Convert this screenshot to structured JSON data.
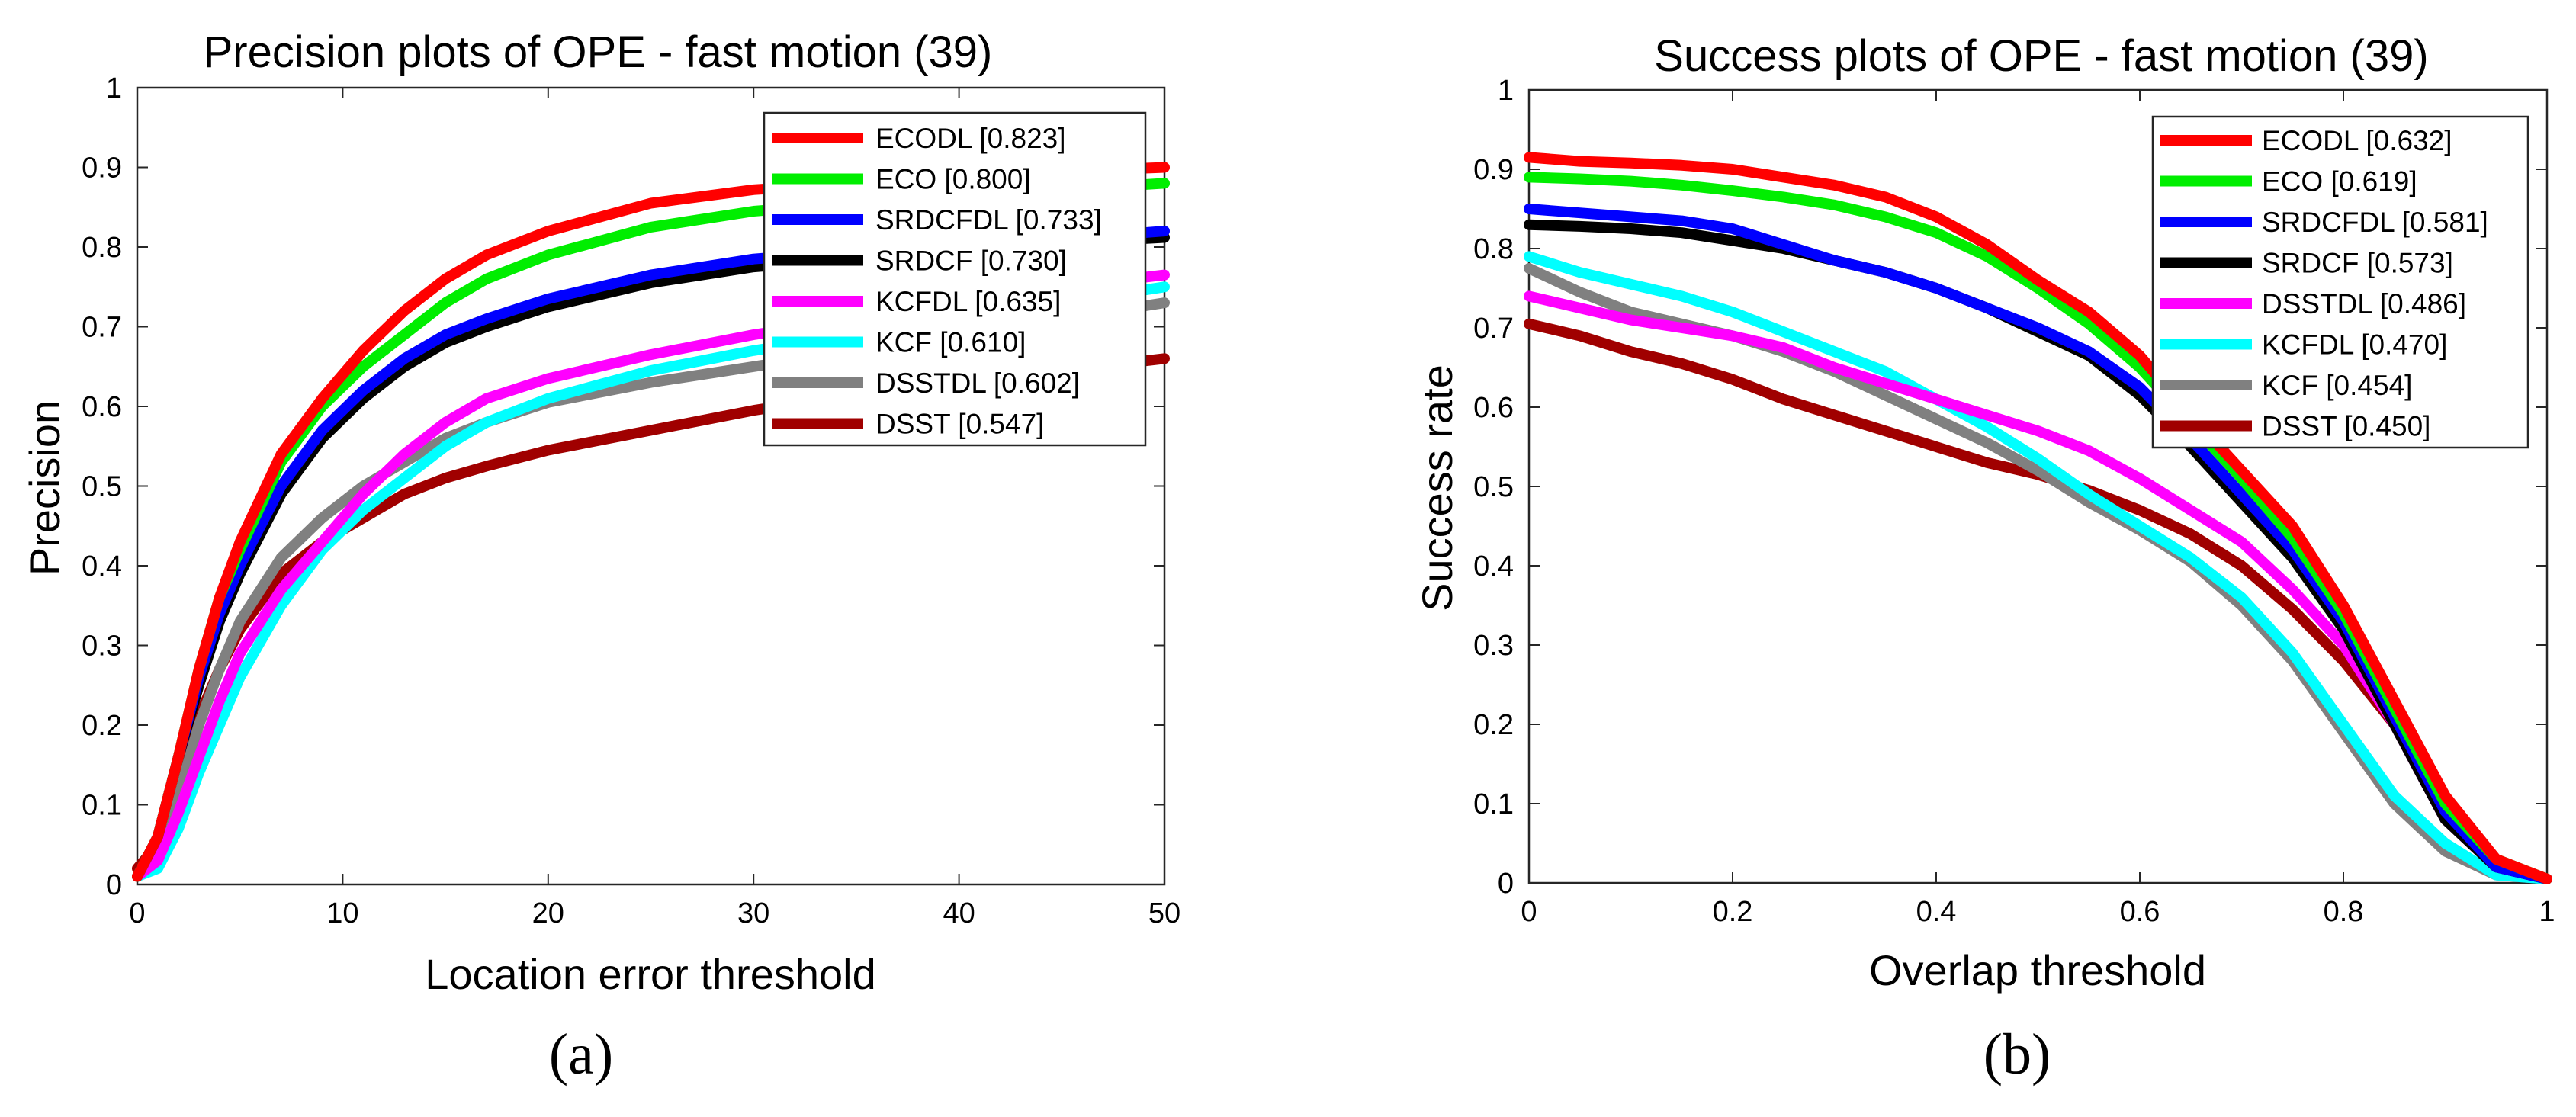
{
  "chart_data": [
    {
      "type": "line",
      "title": "Precision plots of OPE - fast motion (39)",
      "xlabel": "Location error threshold",
      "ylabel": "Precision",
      "xlim": [
        0,
        50
      ],
      "ylim": [
        0,
        1
      ],
      "xticks": [
        0,
        10,
        20,
        30,
        40,
        50
      ],
      "yticks": [
        0,
        0.1,
        0.2,
        0.3,
        0.4,
        0.5,
        0.6,
        0.7,
        0.8,
        0.9,
        1
      ],
      "xtick_labels": [
        "0",
        "10",
        "20",
        "30",
        "40",
        "50"
      ],
      "ytick_labels": [
        "0",
        "0.1",
        "0.2",
        "0.3",
        "0.4",
        "0.5",
        "0.6",
        "0.7",
        "0.8",
        "0.9",
        "1"
      ],
      "legend_position": "top-right",
      "caption": "(a)",
      "x": [
        0,
        1,
        2,
        3,
        4,
        5,
        7,
        9,
        11,
        13,
        15,
        17,
        20,
        25,
        30,
        35,
        40,
        45,
        50
      ],
      "series": [
        {
          "name": "ECODL",
          "label": "ECODL [0.823]",
          "color": "#ff0000",
          "values": [
            0.01,
            0.06,
            0.16,
            0.27,
            0.36,
            0.43,
            0.54,
            0.61,
            0.67,
            0.72,
            0.76,
            0.79,
            0.82,
            0.855,
            0.872,
            0.88,
            0.89,
            0.895,
            0.9
          ]
        },
        {
          "name": "ECO",
          "label": "ECO [0.800]",
          "color": "#00ee00",
          "values": [
            0.01,
            0.06,
            0.16,
            0.27,
            0.36,
            0.42,
            0.53,
            0.6,
            0.65,
            0.69,
            0.73,
            0.76,
            0.79,
            0.825,
            0.845,
            0.855,
            0.865,
            0.872,
            0.88
          ]
        },
        {
          "name": "SRDCFDL",
          "label": "SRDCFDL [0.733]",
          "color": "#0000ff",
          "values": [
            0.01,
            0.06,
            0.16,
            0.26,
            0.34,
            0.4,
            0.5,
            0.57,
            0.62,
            0.66,
            0.69,
            0.71,
            0.735,
            0.765,
            0.785,
            0.795,
            0.805,
            0.81,
            0.82
          ]
        },
        {
          "name": "SRDCF",
          "label": "SRDCF [0.730]",
          "color": "#000000",
          "values": [
            0.01,
            0.06,
            0.16,
            0.25,
            0.33,
            0.39,
            0.49,
            0.56,
            0.61,
            0.65,
            0.68,
            0.7,
            0.725,
            0.755,
            0.775,
            0.785,
            0.795,
            0.805,
            0.812
          ]
        },
        {
          "name": "KCFDL",
          "label": "KCFDL [0.635]",
          "color": "#ff00ff",
          "values": [
            0.01,
            0.03,
            0.09,
            0.16,
            0.23,
            0.29,
            0.37,
            0.43,
            0.49,
            0.54,
            0.58,
            0.61,
            0.635,
            0.665,
            0.69,
            0.71,
            0.73,
            0.75,
            0.765
          ]
        },
        {
          "name": "KCF",
          "label": "KCF [0.610]",
          "color": "#00ffff",
          "values": [
            0.01,
            0.02,
            0.07,
            0.14,
            0.2,
            0.26,
            0.35,
            0.42,
            0.47,
            0.51,
            0.55,
            0.58,
            0.61,
            0.645,
            0.67,
            0.69,
            0.71,
            0.73,
            0.75
          ]
        },
        {
          "name": "DSSTDL",
          "label": "DSSTDL [0.602]",
          "color": "#808080",
          "values": [
            0.01,
            0.04,
            0.11,
            0.2,
            0.27,
            0.33,
            0.41,
            0.46,
            0.5,
            0.53,
            0.56,
            0.58,
            0.605,
            0.63,
            0.65,
            0.67,
            0.69,
            0.71,
            0.73
          ]
        },
        {
          "name": "DSST",
          "label": "DSST [0.547]",
          "color": "#a00000",
          "values": [
            0.02,
            0.05,
            0.13,
            0.21,
            0.27,
            0.32,
            0.39,
            0.43,
            0.46,
            0.49,
            0.51,
            0.525,
            0.545,
            0.57,
            0.595,
            0.615,
            0.63,
            0.645,
            0.66
          ]
        }
      ]
    },
    {
      "type": "line",
      "title": "Success plots of OPE - fast motion (39)",
      "xlabel": "Overlap threshold",
      "ylabel": "Success rate",
      "xlim": [
        0,
        1
      ],
      "ylim": [
        0,
        1
      ],
      "xticks": [
        0,
        0.2,
        0.4,
        0.6,
        0.8,
        1
      ],
      "yticks": [
        0,
        0.1,
        0.2,
        0.3,
        0.4,
        0.5,
        0.6,
        0.7,
        0.8,
        0.9,
        1
      ],
      "xtick_labels": [
        "0",
        "0.2",
        "0.4",
        "0.6",
        "0.8",
        "1"
      ],
      "ytick_labels": [
        "0",
        "0.1",
        "0.2",
        "0.3",
        "0.4",
        "0.5",
        "0.6",
        "0.7",
        "0.8",
        "0.9",
        "1"
      ],
      "legend_position": "top-right",
      "caption": "(b)",
      "x": [
        0,
        0.05,
        0.1,
        0.15,
        0.2,
        0.25,
        0.3,
        0.35,
        0.4,
        0.45,
        0.5,
        0.55,
        0.6,
        0.65,
        0.7,
        0.75,
        0.8,
        0.85,
        0.9,
        0.95,
        1
      ],
      "series": [
        {
          "name": "ECODL",
          "label": "ECODL [0.632]",
          "color": "#ff0000",
          "values": [
            0.915,
            0.91,
            0.908,
            0.905,
            0.9,
            0.89,
            0.88,
            0.865,
            0.84,
            0.805,
            0.76,
            0.72,
            0.665,
            0.59,
            0.52,
            0.45,
            0.35,
            0.23,
            0.11,
            0.03,
            0.005
          ]
        },
        {
          "name": "ECO",
          "label": "ECO [0.619]",
          "color": "#00ee00",
          "values": [
            0.89,
            0.888,
            0.885,
            0.88,
            0.873,
            0.865,
            0.855,
            0.84,
            0.82,
            0.79,
            0.75,
            0.705,
            0.65,
            0.58,
            0.51,
            0.435,
            0.34,
            0.22,
            0.1,
            0.03,
            0.005
          ]
        },
        {
          "name": "SRDCFDL",
          "label": "SRDCFDL [0.581]",
          "color": "#0000ff",
          "values": [
            0.85,
            0.845,
            0.84,
            0.835,
            0.825,
            0.805,
            0.785,
            0.77,
            0.75,
            0.725,
            0.7,
            0.67,
            0.625,
            0.56,
            0.49,
            0.42,
            0.33,
            0.21,
            0.09,
            0.02,
            0.005
          ]
        },
        {
          "name": "SRDCF",
          "label": "SRDCF [0.573]",
          "color": "#000000",
          "values": [
            0.83,
            0.828,
            0.825,
            0.82,
            0.81,
            0.8,
            0.785,
            0.77,
            0.75,
            0.725,
            0.695,
            0.665,
            0.615,
            0.55,
            0.48,
            0.41,
            0.32,
            0.2,
            0.08,
            0.02,
            0.005
          ]
        },
        {
          "name": "DSSTDL",
          "label": "DSSTDL [0.486]",
          "color": "#ff00ff",
          "values": [
            0.74,
            0.725,
            0.71,
            0.7,
            0.69,
            0.675,
            0.65,
            0.63,
            0.61,
            0.59,
            0.57,
            0.545,
            0.51,
            0.47,
            0.43,
            0.37,
            0.3,
            0.2,
            0.08,
            0.02,
            0.005
          ]
        },
        {
          "name": "KCFDL",
          "label": "KCFDL [0.470]",
          "color": "#00ffff",
          "values": [
            0.79,
            0.77,
            0.755,
            0.74,
            0.72,
            0.695,
            0.67,
            0.645,
            0.61,
            0.575,
            0.535,
            0.49,
            0.45,
            0.41,
            0.36,
            0.29,
            0.2,
            0.11,
            0.05,
            0.01,
            0.005
          ]
        },
        {
          "name": "KCF",
          "label": "KCF [0.454]",
          "color": "#808080",
          "values": [
            0.775,
            0.745,
            0.72,
            0.705,
            0.69,
            0.67,
            0.645,
            0.615,
            0.585,
            0.555,
            0.52,
            0.48,
            0.445,
            0.405,
            0.35,
            0.28,
            0.19,
            0.1,
            0.04,
            0.01,
            0.005
          ]
        },
        {
          "name": "DSST",
          "label": "DSST [0.450]",
          "color": "#a00000",
          "values": [
            0.705,
            0.69,
            0.67,
            0.655,
            0.635,
            0.61,
            0.59,
            0.57,
            0.55,
            0.53,
            0.515,
            0.495,
            0.47,
            0.44,
            0.4,
            0.345,
            0.28,
            0.2,
            0.09,
            0.02,
            0.005
          ]
        }
      ]
    }
  ]
}
